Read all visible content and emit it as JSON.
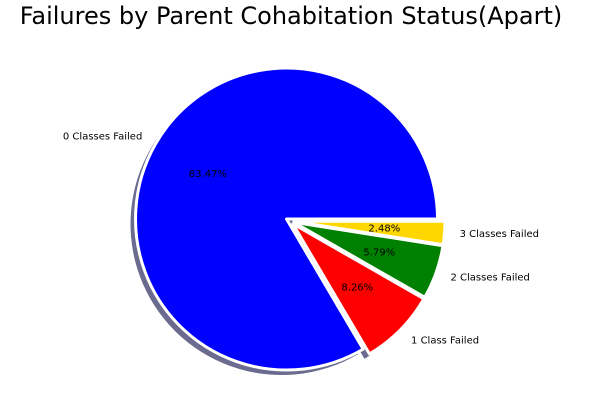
{
  "chart_data": {
    "type": "pie",
    "title": "Failures by Parent Cohabitation Status(Apart)",
    "slices": [
      {
        "label": "0 Classes Failed",
        "value": 83.47,
        "pct_label": "83.47%",
        "color": "#0000ff"
      },
      {
        "label": "1 Class Failed",
        "value": 8.26,
        "pct_label": "8.26%",
        "color": "#ff0000"
      },
      {
        "label": "2 Classes Failed",
        "value": 5.79,
        "pct_label": "5.79%",
        "color": "#008000"
      },
      {
        "label": "3 Classes Failed",
        "value": 2.48,
        "pct_label": "2.48%",
        "color": "#ffd700"
      }
    ],
    "start_angle_deg": 0,
    "direction": "counterclockwise",
    "exploded": true,
    "shadow": true,
    "legend": "none"
  }
}
